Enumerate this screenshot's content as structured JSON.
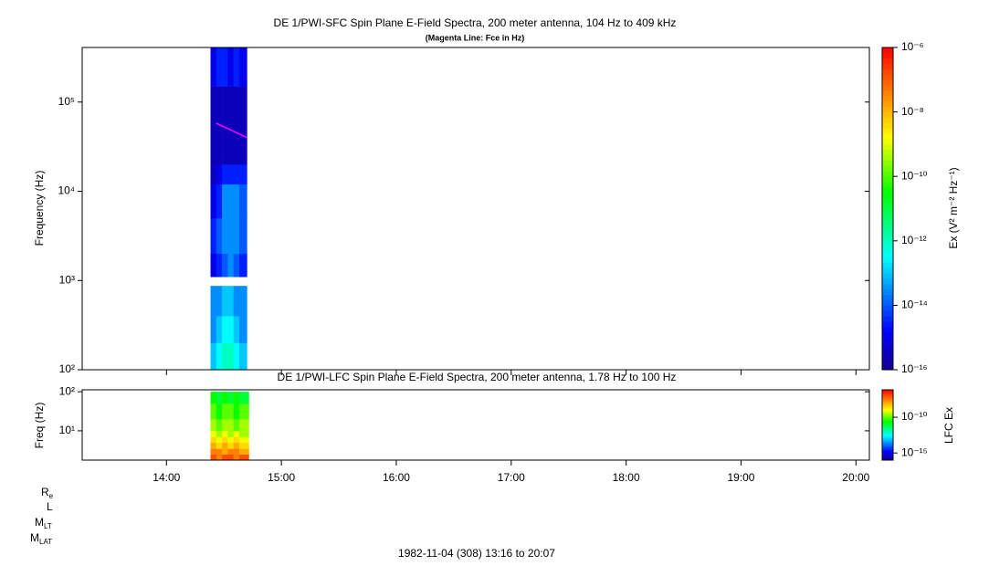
{
  "chart_data": [
    {
      "type": "spectrogram",
      "title": "DE 1/PWI-SFC  Spin Plane E-Field Spectra, 200 meter antenna, 104 Hz to 409 kHz",
      "subtitle": "(Magenta Line: Fce in Hz)",
      "ylabel": "Frequency (Hz)",
      "xlim": [
        796,
        1207
      ],
      "xticks": [
        {
          "value": 840,
          "label": "14:00"
        },
        {
          "value": 900,
          "label": "15:00"
        },
        {
          "value": 960,
          "label": "16:00"
        },
        {
          "value": 1020,
          "label": "17:00"
        },
        {
          "value": 1080,
          "label": "18:00"
        },
        {
          "value": 1140,
          "label": "19:00"
        },
        {
          "value": 1200,
          "label": "20:00"
        }
      ],
      "ylim": [
        100,
        409000
      ],
      "ylog": true,
      "yticks": [
        {
          "value": 100,
          "label": "10²"
        },
        {
          "value": 1000,
          "label": "10³"
        },
        {
          "value": 10000,
          "label": "10⁴"
        },
        {
          "value": 100000,
          "label": "10⁵"
        }
      ],
      "time_edges": [
        863,
        866,
        869,
        872,
        875,
        878,
        882
      ],
      "freq_edges": [
        100,
        200,
        400,
        870,
        1100,
        2000,
        5000,
        12000,
        20000,
        60000,
        150000,
        409000
      ],
      "values": [
        [
          1e-13,
          3e-13,
          1e-12,
          1e-12,
          3e-13,
          1e-13
        ],
        [
          3e-14,
          1e-13,
          3e-13,
          3e-13,
          1e-13,
          3e-14
        ],
        [
          3e-14,
          3e-14,
          1e-13,
          1e-13,
          3e-14,
          3e-14
        ],
        [
          null,
          null,
          null,
          null,
          null,
          null
        ],
        [
          1e-15,
          3e-15,
          1e-14,
          3e-14,
          1e-14,
          3e-15
        ],
        [
          3e-15,
          1e-14,
          3e-14,
          3e-14,
          3e-14,
          1e-14
        ],
        [
          1e-15,
          3e-15,
          3e-14,
          3e-14,
          3e-14,
          1e-14
        ],
        [
          3e-16,
          1e-15,
          3e-15,
          3e-15,
          3e-15,
          3e-15
        ],
        [
          3e-16,
          3e-16,
          3e-16,
          3e-16,
          3e-16,
          3e-16
        ],
        [
          3e-16,
          3e-16,
          3e-16,
          3e-16,
          3e-16,
          3e-16
        ],
        [
          1e-15,
          3e-15,
          3e-15,
          1e-15,
          3e-15,
          1e-15
        ]
      ],
      "clim": [
        1e-16,
        1e-06
      ],
      "clog": true,
      "cticks": [
        {
          "value": 1e-16,
          "label": "10⁻¹⁶"
        },
        {
          "value": 1e-14,
          "label": "10⁻¹⁴"
        },
        {
          "value": 1e-12,
          "label": "10⁻¹²"
        },
        {
          "value": 1e-10,
          "label": "10⁻¹⁰"
        },
        {
          "value": 1e-08,
          "label": "10⁻⁸"
        },
        {
          "value": 1e-06,
          "label": "10⁻⁶"
        }
      ],
      "clabel": "Ex (V² m⁻² Hz⁻¹)",
      "series": [
        {
          "color": "#ff00ff",
          "x": [
            866,
            882
          ],
          "values": [
            58000,
            40000
          ]
        }
      ]
    },
    {
      "type": "spectrogram",
      "title": "DE 1/PWI-LFC  Spin Plane E-Field Spectra, 200 meter antenna, 1.78 Hz to 100 Hz",
      "ylabel": "Freq (Hz)",
      "xlim": [
        796,
        1207
      ],
      "xticks": [
        {
          "value": 840,
          "label": "14:00"
        },
        {
          "value": 900,
          "label": "15:00"
        },
        {
          "value": 960,
          "label": "16:00"
        },
        {
          "value": 1020,
          "label": "17:00"
        },
        {
          "value": 1080,
          "label": "18:00"
        },
        {
          "value": 1140,
          "label": "19:00"
        },
        {
          "value": 1200,
          "label": "20:00"
        }
      ],
      "ylim": [
        1.78,
        112
      ],
      "ylog": true,
      "yticks": [
        {
          "value": 10,
          "label": "10¹"
        },
        {
          "value": 100,
          "label": "10²"
        }
      ],
      "time_edges": [
        863,
        866,
        869,
        872,
        875,
        878,
        883
      ],
      "freq_edges": [
        1.78,
        2.5,
        3.5,
        5,
        7,
        10,
        20,
        50,
        100
      ],
      "values": [
        [
          1e-07,
          3e-08,
          1e-07,
          1e-07,
          3e-08,
          1e-07
        ],
        [
          3e-08,
          3e-08,
          1e-08,
          3e-08,
          3e-08,
          1e-08
        ],
        [
          1e-08,
          3e-09,
          1e-08,
          3e-09,
          1e-08,
          3e-09
        ],
        [
          3e-09,
          1e-09,
          3e-09,
          1e-09,
          3e-09,
          1e-09
        ],
        [
          1e-09,
          3e-10,
          1e-09,
          3e-10,
          1e-09,
          3e-10
        ],
        [
          3e-10,
          1e-10,
          3e-10,
          3e-10,
          1e-10,
          3e-10
        ],
        [
          1e-10,
          3e-11,
          1e-10,
          1e-10,
          3e-11,
          1e-10
        ],
        [
          3e-11,
          1e-11,
          3e-11,
          1e-11,
          3e-11,
          1e-11
        ]
      ],
      "clim": [
        1e-16,
        7e-07
      ],
      "clog": true,
      "cticks": [
        {
          "value": 1e-15,
          "label": "10⁻¹⁵"
        },
        {
          "value": 1e-10,
          "label": "10⁻¹⁰"
        }
      ],
      "clabel": "LFC Ex"
    }
  ],
  "ephemeris": [
    {
      "main": "R",
      "sub": "e"
    },
    {
      "main": "L"
    },
    {
      "main": "M",
      "sub": "LT"
    },
    {
      "main": "M",
      "sub": "LAT"
    }
  ],
  "time_range": "1982-11-04 (308) 13:16 to 20:07"
}
